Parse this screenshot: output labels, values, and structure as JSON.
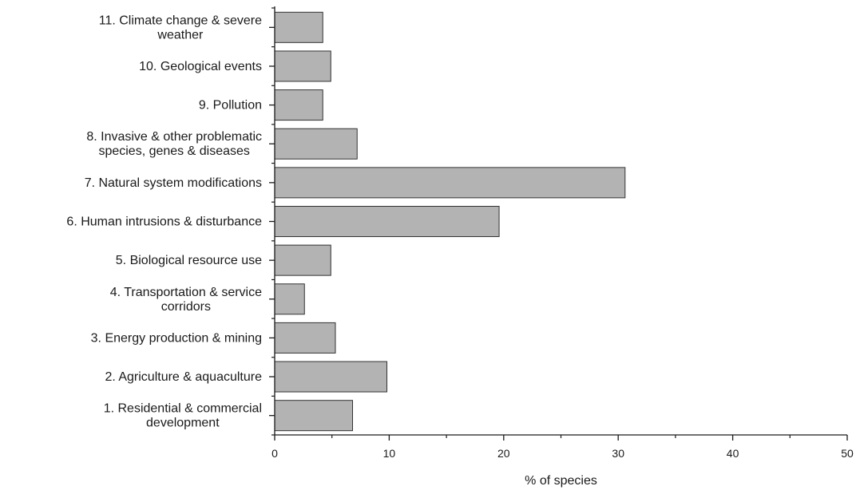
{
  "chart_data": {
    "type": "bar",
    "orientation": "horizontal",
    "categories": [
      [
        "11. Climate change & severe",
        "weather"
      ],
      [
        "10. Geological events"
      ],
      [
        "9. Pollution"
      ],
      [
        "8. Invasive & other problematic",
        "species, genes & diseases"
      ],
      [
        "7. Natural system modifications"
      ],
      [
        "6. Human intrusions & disturbance"
      ],
      [
        "5. Biological resource use"
      ],
      [
        "4. Transportation & service",
        "corridors"
      ],
      [
        "3. Energy production & mining"
      ],
      [
        "2. Agriculture & aquaculture"
      ],
      [
        "1. Residential & commercial",
        "development"
      ]
    ],
    "values": [
      4.2,
      4.9,
      4.2,
      7.2,
      30.6,
      19.6,
      4.9,
      2.6,
      5.3,
      9.8,
      6.8
    ],
    "xlabel": "% of species",
    "ylabel": "",
    "xlim": [
      0,
      50
    ],
    "xticks": [
      "0",
      "10",
      "20",
      "30",
      "40",
      "50"
    ],
    "grid": false,
    "bar_color": "#b3b3b3",
    "bar_edge_color": "#333333"
  }
}
